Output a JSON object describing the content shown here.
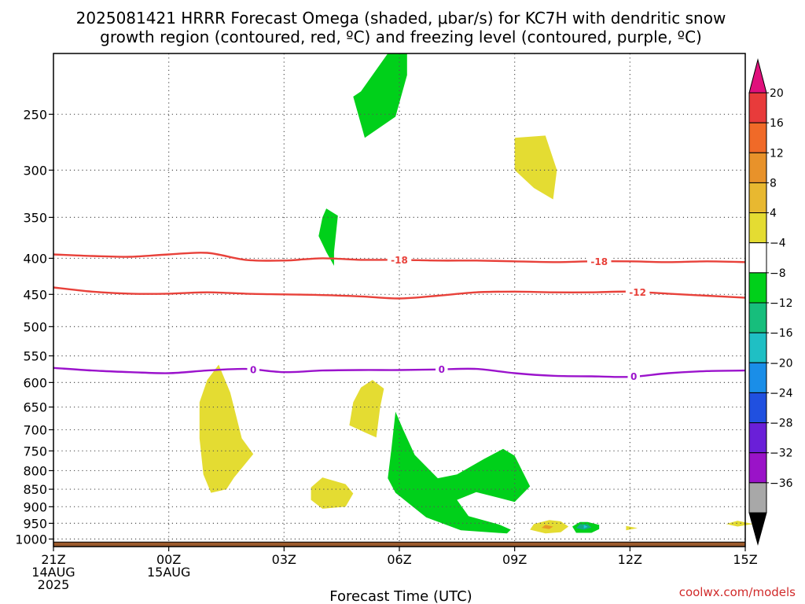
{
  "chart_data": {
    "type": "heatmap",
    "title_lines": [
      "2025081421 HRRR Forecast Omega (shaded, μbar/s) for KC7H with dendritic snow",
      "growth region (contoured, red, ºC) and freezing level (contoured, purple, ºC)"
    ],
    "xlabel": "Forecast Time (UTC)",
    "ylabel": "",
    "x_range_hours": [
      0,
      18
    ],
    "x_ticks": [
      {
        "hour": 0,
        "lines": [
          "21Z",
          "14AUG",
          "2025"
        ]
      },
      {
        "hour": 3,
        "lines": [
          "00Z",
          "15AUG"
        ]
      },
      {
        "hour": 6,
        "lines": [
          "03Z"
        ]
      },
      {
        "hour": 9,
        "lines": [
          "06Z"
        ]
      },
      {
        "hour": 12,
        "lines": [
          "09Z"
        ]
      },
      {
        "hour": 15,
        "lines": [
          "12Z"
        ]
      },
      {
        "hour": 18,
        "lines": [
          "15Z"
        ]
      }
    ],
    "y_scale": "log-pressure",
    "y_range_hpa": [
      1025,
      205
    ],
    "y_ticks": [
      250,
      300,
      350,
      400,
      450,
      500,
      550,
      600,
      650,
      700,
      750,
      800,
      850,
      900,
      950,
      1000
    ],
    "grid": true,
    "ground_level_hpa": 1010,
    "ground_color": "#9b5a2c",
    "contours": [
      {
        "level": "-18",
        "color": "#e8413a",
        "points": [
          [
            0,
            395
          ],
          [
            1,
            397
          ],
          [
            2,
            398
          ],
          [
            3,
            395
          ],
          [
            4,
            393
          ],
          [
            5,
            402
          ],
          [
            6,
            403
          ],
          [
            7,
            400
          ],
          [
            8,
            402
          ],
          [
            9,
            402
          ],
          [
            10,
            403
          ],
          [
            11,
            403
          ],
          [
            12,
            404
          ],
          [
            13,
            405
          ],
          [
            14,
            404
          ],
          [
            15,
            404
          ],
          [
            16,
            405
          ],
          [
            17,
            404
          ],
          [
            18,
            405
          ]
        ],
        "label_hours": [
          9,
          14.2
        ]
      },
      {
        "level": "-12",
        "color": "#e8413a",
        "points": [
          [
            0,
            440
          ],
          [
            1,
            446
          ],
          [
            2,
            449
          ],
          [
            3,
            449
          ],
          [
            4,
            447
          ],
          [
            5,
            449
          ],
          [
            6,
            450
          ],
          [
            7,
            451
          ],
          [
            8,
            453
          ],
          [
            9,
            456
          ],
          [
            10,
            452
          ],
          [
            11,
            447
          ],
          [
            12,
            446
          ],
          [
            13,
            447
          ],
          [
            14,
            447
          ],
          [
            15,
            446
          ],
          [
            16,
            449
          ],
          [
            17,
            452
          ],
          [
            18,
            455
          ]
        ],
        "label_hours": [
          15.2
        ]
      },
      {
        "level": "0",
        "color": "#9b13cc",
        "points": [
          [
            0,
            572
          ],
          [
            1,
            577
          ],
          [
            2,
            580
          ],
          [
            3,
            582
          ],
          [
            4,
            577
          ],
          [
            5,
            574
          ],
          [
            6,
            580
          ],
          [
            7,
            577
          ],
          [
            8,
            576
          ],
          [
            9,
            576
          ],
          [
            10,
            575
          ],
          [
            11,
            574
          ],
          [
            12,
            582
          ],
          [
            13,
            587
          ],
          [
            14,
            588
          ],
          [
            15,
            589
          ],
          [
            16,
            582
          ],
          [
            17,
            578
          ],
          [
            18,
            577
          ]
        ],
        "label_hours": [
          5.2,
          10.1,
          15.1
        ]
      }
    ],
    "omega_regions": [
      {
        "fill": "#00d01a",
        "points": [
          [
            8.0,
            232
          ],
          [
            8.7,
            205
          ],
          [
            9.2,
            205
          ],
          [
            9.2,
            220
          ],
          [
            8.9,
            252
          ],
          [
            8.1,
            270
          ],
          [
            7.8,
            236
          ]
        ]
      },
      {
        "fill": "#00d01a",
        "points": [
          [
            7.1,
            340
          ],
          [
            7.4,
            348
          ],
          [
            7.3,
            392
          ],
          [
            7.3,
            410
          ],
          [
            7.1,
            392
          ],
          [
            6.9,
            372
          ],
          [
            7.0,
            350
          ]
        ]
      },
      {
        "fill": "#00d01a",
        "points": [
          [
            8.9,
            660
          ],
          [
            9.1,
            700
          ],
          [
            9.4,
            760
          ],
          [
            10.0,
            820
          ],
          [
            10.5,
            810
          ],
          [
            11.2,
            770
          ],
          [
            11.7,
            745
          ],
          [
            12.0,
            762
          ],
          [
            12.4,
            842
          ],
          [
            12.0,
            886
          ],
          [
            11.0,
            858
          ],
          [
            10.5,
            880
          ],
          [
            10.8,
            928
          ],
          [
            11.6,
            954
          ],
          [
            11.9,
            970
          ],
          [
            11.8,
            982
          ],
          [
            10.6,
            972
          ],
          [
            9.7,
            932
          ],
          [
            8.9,
            860
          ],
          [
            8.7,
            820
          ],
          [
            8.8,
            740
          ]
        ]
      },
      {
        "fill": "#00d01a",
        "points": [
          [
            13.9,
            946
          ],
          [
            14.2,
            955
          ],
          [
            14.2,
            968
          ],
          [
            14.0,
            980
          ],
          [
            13.6,
            980
          ],
          [
            13.5,
            960
          ],
          [
            13.7,
            946
          ]
        ]
      },
      {
        "fill": "#e4dc32",
        "points": [
          [
            12.0,
            270
          ],
          [
            12.8,
            268
          ],
          [
            13.1,
            300
          ],
          [
            13.0,
            330
          ],
          [
            12.5,
            318
          ],
          [
            12.0,
            300
          ]
        ]
      },
      {
        "fill": "#e4dc32",
        "points": [
          [
            4.0,
            595
          ],
          [
            4.3,
            566
          ],
          [
            4.6,
            620
          ],
          [
            4.9,
            720
          ],
          [
            5.2,
            758
          ],
          [
            4.7,
            818
          ],
          [
            4.5,
            850
          ],
          [
            4.1,
            860
          ],
          [
            3.9,
            810
          ],
          [
            3.8,
            720
          ],
          [
            3.8,
            640
          ]
        ]
      },
      {
        "fill": "#e4dc32",
        "points": [
          [
            8.3,
            595
          ],
          [
            8.6,
            612
          ],
          [
            8.5,
            650
          ],
          [
            8.4,
            718
          ],
          [
            8.1,
            706
          ],
          [
            7.7,
            690
          ],
          [
            7.8,
            640
          ],
          [
            8.0,
            610
          ]
        ]
      },
      {
        "fill": "#e4dc32",
        "points": [
          [
            7.0,
            818
          ],
          [
            7.6,
            836
          ],
          [
            7.8,
            862
          ],
          [
            7.6,
            900
          ],
          [
            7.0,
            906
          ],
          [
            6.7,
            880
          ],
          [
            6.7,
            845
          ]
        ]
      },
      {
        "fill": "#e4dc32",
        "points": [
          [
            12.9,
            940
          ],
          [
            13.2,
            944
          ],
          [
            13.4,
            960
          ],
          [
            13.2,
            978
          ],
          [
            12.8,
            982
          ],
          [
            12.4,
            970
          ],
          [
            12.5,
            952
          ]
        ]
      },
      {
        "fill": "#e4dc32",
        "points": [
          [
            14.9,
            958
          ],
          [
            15.2,
            965
          ],
          [
            14.9,
            972
          ]
        ]
      },
      {
        "fill": "#e4dc32",
        "points": [
          [
            17.8,
            942
          ],
          [
            18.2,
            952
          ],
          [
            17.8,
            960
          ],
          [
            17.5,
            952
          ]
        ]
      },
      {
        "fill": "#e89a26",
        "points": [
          [
            12.8,
            955
          ],
          [
            13.0,
            960
          ],
          [
            12.9,
            968
          ],
          [
            12.7,
            964
          ]
        ]
      },
      {
        "fill": "#15a888",
        "points": [
          [
            13.7,
            953
          ],
          [
            13.9,
            953
          ],
          [
            14.0,
            963
          ],
          [
            13.8,
            970
          ],
          [
            13.6,
            965
          ]
        ]
      },
      {
        "fill": "#22c8d8",
        "points": [
          [
            13.8,
            955
          ],
          [
            13.9,
            961
          ],
          [
            13.8,
            966
          ]
        ]
      }
    ],
    "colorbar": {
      "labels": [
        "20",
        "16",
        "12",
        "8",
        "4",
        "−4",
        "−8",
        "−12",
        "−16",
        "−20",
        "−24",
        "−28",
        "−32",
        "−36"
      ],
      "top_triangle_color": "#e0107c",
      "bottom_triangle_color": "#000000",
      "bins": [
        "#e83b3b",
        "#f06a28",
        "#e8922a",
        "#e8b830",
        "#e4dc32",
        "#ffffff",
        "#00d01a",
        "#17be7c",
        "#1fbfc4",
        "#1a8ee8",
        "#2050e0",
        "#6a1fd8",
        "#9a13c8",
        "#a8a8a8"
      ]
    },
    "credit": "coolwx.com/models"
  }
}
